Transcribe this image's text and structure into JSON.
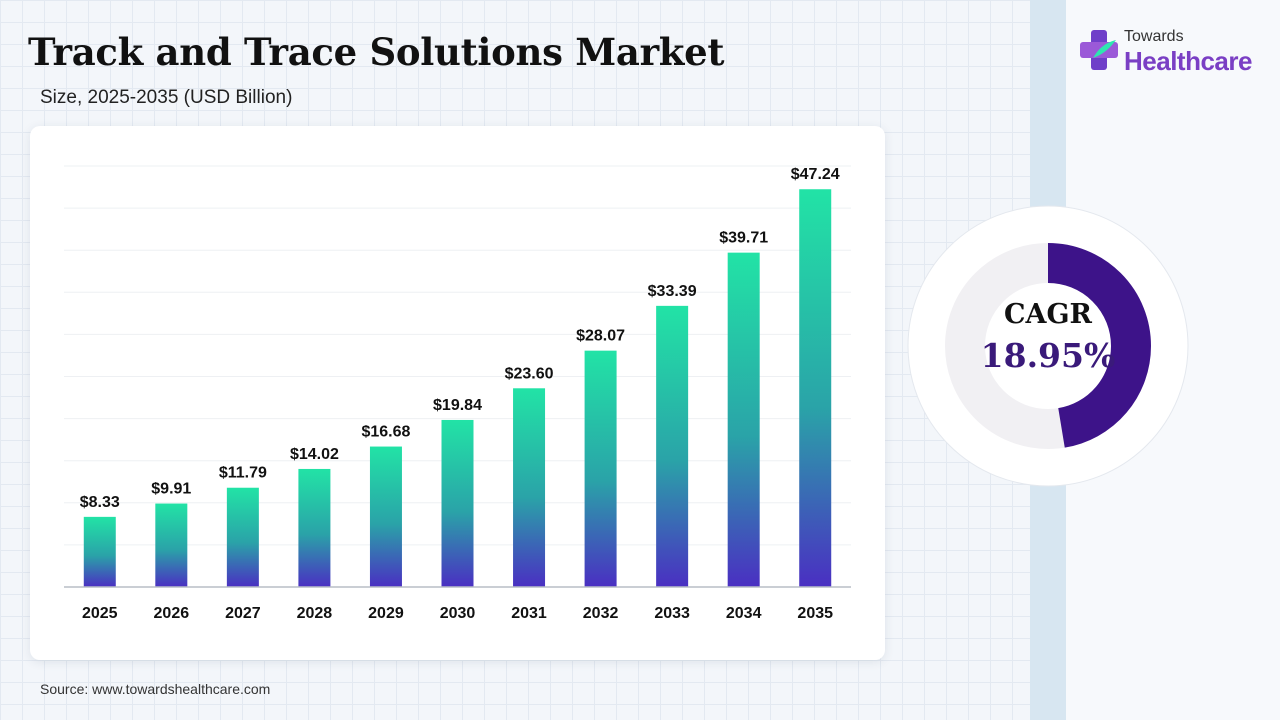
{
  "header": {
    "title": "Track and Trace Solutions Market",
    "subtitle": "Size, 2025-2035 (USD Billion)"
  },
  "source": "Source: www.towardshealthcare.com",
  "logo": {
    "top_text": "Towards",
    "main_text": "Healthcare",
    "icon": "medical-cross-logo-icon"
  },
  "cagr": {
    "label": "CAGR",
    "value": "18.95%",
    "percent": 18.95
  },
  "colors": {
    "bar_top": "#22e3a6",
    "bar_bottom": "#4a2fc2",
    "cagr_ring": "#3d1389",
    "cagr_track": "#f1f0f3",
    "brand_purple": "#7a3fc4"
  },
  "chart_data": {
    "type": "bar",
    "categories": [
      "2025",
      "2026",
      "2027",
      "2028",
      "2029",
      "2030",
      "2031",
      "2032",
      "2033",
      "2034",
      "2035"
    ],
    "values": [
      8.33,
      9.91,
      11.79,
      14.02,
      16.68,
      19.84,
      23.6,
      28.07,
      33.39,
      39.71,
      47.24
    ],
    "data_labels": [
      "$8.33",
      "$9.91",
      "$11.79",
      "$14.02",
      "$16.68",
      "$19.84",
      "$23.60",
      "$28.07",
      "$33.39",
      "$39.71",
      "$47.24"
    ],
    "title": "Track and Trace Solutions Market",
    "xlabel": "",
    "ylabel": "",
    "ylim": [
      0,
      50
    ],
    "grid": true,
    "legend": "none"
  }
}
